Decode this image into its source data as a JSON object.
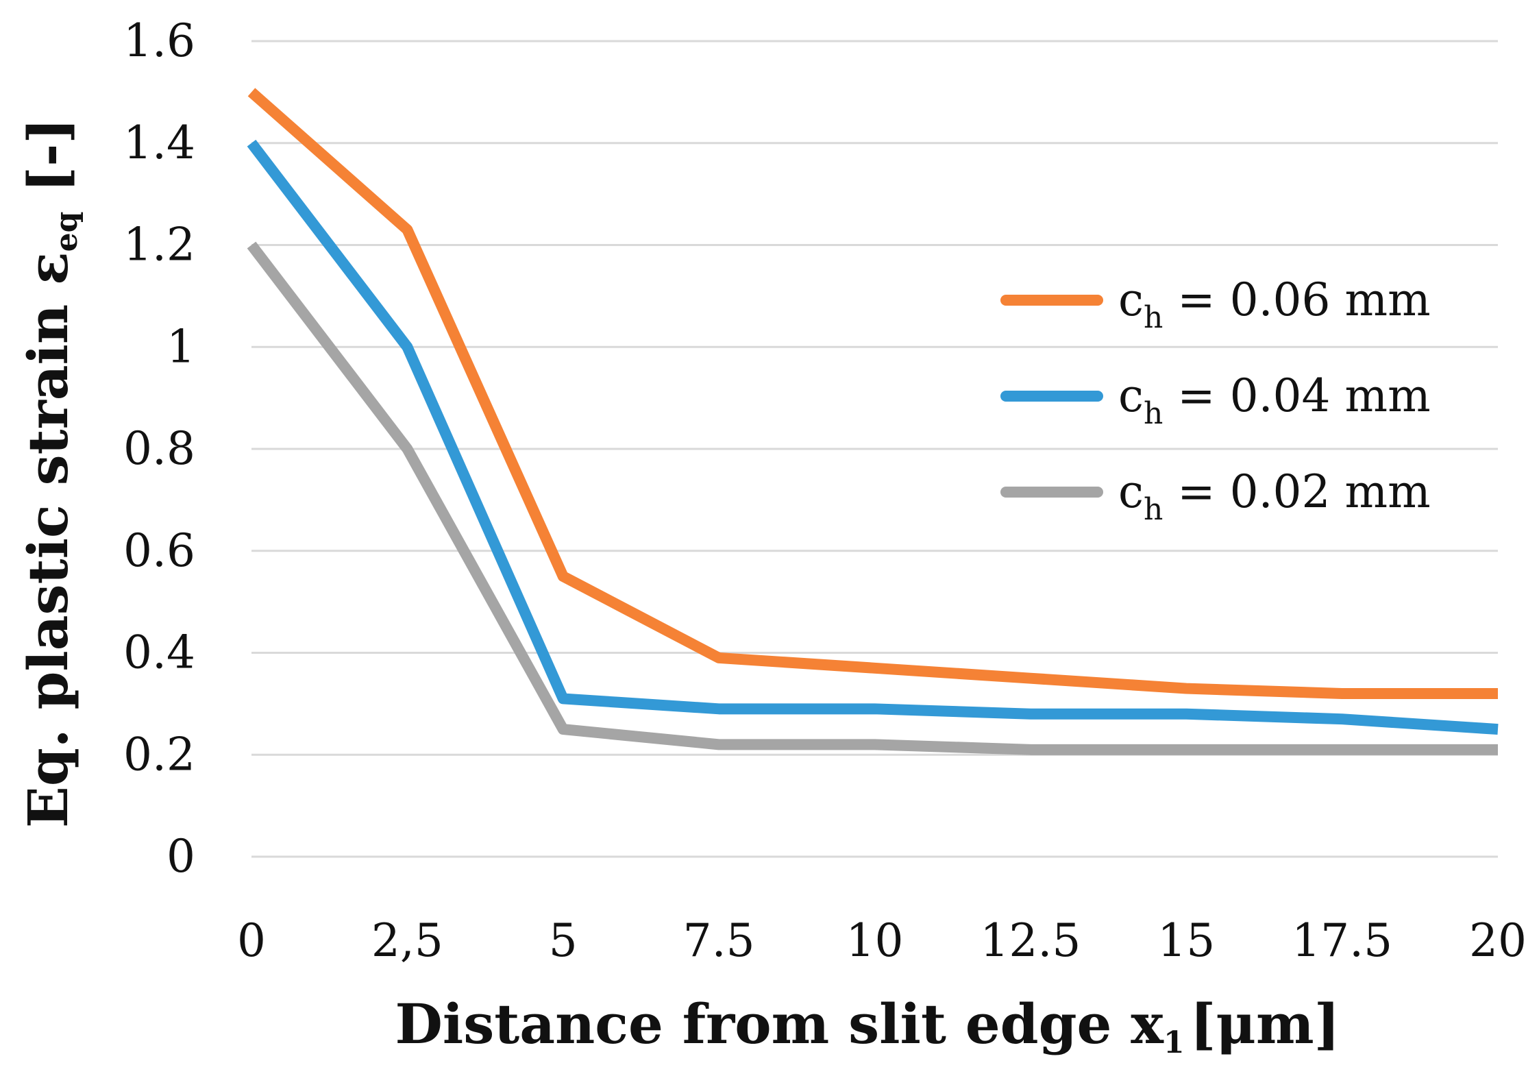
{
  "chart_data": {
    "type": "line",
    "title": "",
    "x": [
      0,
      2.5,
      5,
      7.5,
      10,
      12.5,
      15,
      17.5,
      20
    ],
    "x_tick_labels": [
      "0",
      "2,5",
      "5",
      "7.5",
      "10",
      "12.5",
      "15",
      "17.5",
      "20"
    ],
    "y_tick_labels": [
      "0",
      "0.2",
      "0.4",
      "0.6",
      "0.8",
      "1",
      "1.2",
      "1.4",
      "1.6"
    ],
    "xlim": [
      0,
      20
    ],
    "ylim": [
      0,
      1.6
    ],
    "grid": "horizontal",
    "legend_position": "right",
    "xlabel": {
      "main": "Distance from slit edge x",
      "subscript": "1",
      "unit": "[μm]"
    },
    "ylabel": {
      "main": "Eq. plastic strain ε",
      "subscript": "eq",
      "unit": " [-]"
    },
    "series": [
      {
        "name": "c",
        "name_sub": "h",
        "name_rest": " = 0.06 mm",
        "color": "#f58235",
        "values": [
          1.5,
          1.23,
          0.55,
          0.39,
          0.37,
          0.35,
          0.33,
          0.32,
          0.32
        ]
      },
      {
        "name": "c",
        "name_sub": "h",
        "name_rest": " = 0.04 mm",
        "color": "#3399d6",
        "values": [
          1.4,
          1.0,
          0.31,
          0.29,
          0.29,
          0.28,
          0.28,
          0.27,
          0.25
        ]
      },
      {
        "name": "c",
        "name_sub": "h",
        "name_rest": " = 0.02 mm",
        "color": "#a5a5a5",
        "values": [
          1.2,
          0.8,
          0.25,
          0.22,
          0.22,
          0.21,
          0.21,
          0.21,
          0.21
        ]
      }
    ]
  }
}
